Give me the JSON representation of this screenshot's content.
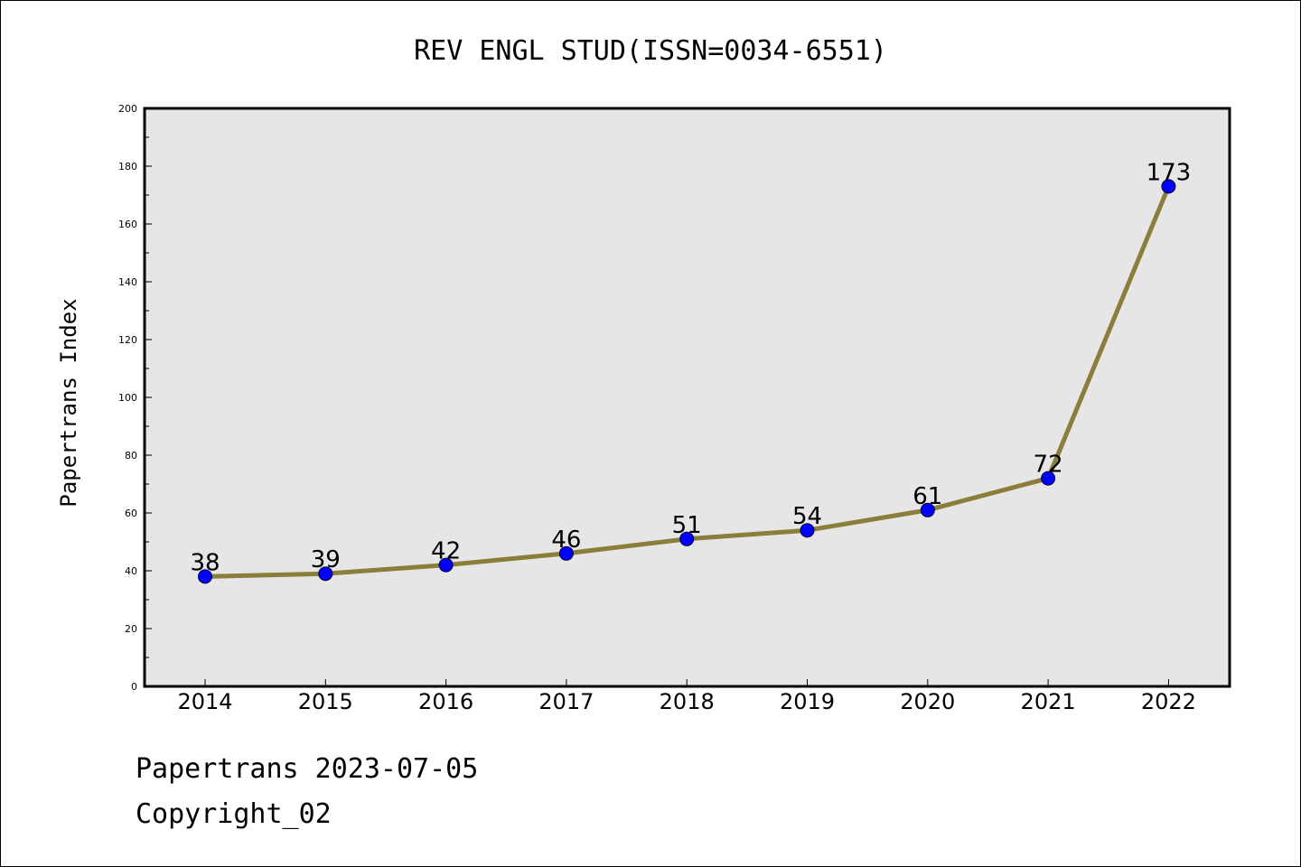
{
  "chart_data": {
    "type": "line",
    "title": "REV ENGL STUD(ISSN=0034-6551)",
    "xlabel": "",
    "ylabel": "Papertrans Index",
    "categories": [
      "2014",
      "2015",
      "2016",
      "2017",
      "2018",
      "2019",
      "2020",
      "2021",
      "2022"
    ],
    "series": [
      {
        "values": [
          38,
          39,
          42,
          46,
          51,
          54,
          61,
          72,
          173
        ]
      }
    ],
    "data_labels": [
      "38",
      "39",
      "42",
      "46",
      "51",
      "54",
      "61",
      "72",
      "173"
    ],
    "ylim": [
      0,
      200
    ],
    "yticks": [
      "0",
      "20",
      "40",
      "60",
      "80",
      "100",
      "120",
      "140",
      "160",
      "180",
      "200"
    ],
    "grid": false,
    "colors": {
      "line": "#8b7d3a",
      "marker": "#0000ff",
      "plot_background": "#e6e6e6"
    }
  },
  "footer": {
    "date_text": "Papertrans 2023-07-05",
    "copyright_text": "Copyright_02"
  }
}
